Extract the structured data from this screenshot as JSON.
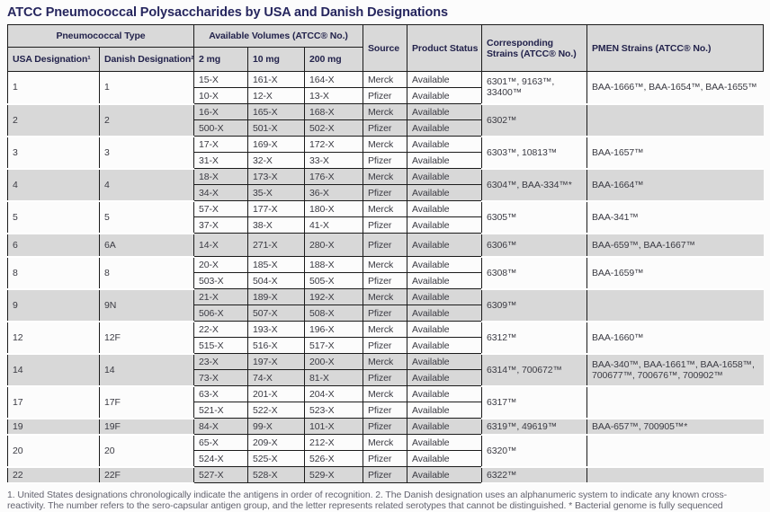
{
  "title": "ATCC Pneumococcal Polysaccharides by USA and Danish Designations",
  "header": {
    "group_pneumococcal": "Pneumococcal Type",
    "group_volumes": "Available Volumes (ATCC® No.)",
    "col_usa": "USA Designation¹",
    "col_danish": "Danish Designation²",
    "col_2mg": "2 mg",
    "col_10mg": "10 mg",
    "col_200mg": "200 mg",
    "col_source": "Source",
    "col_status": "Product Status",
    "col_strains": "Corresponding Strains (ATCC® No.)",
    "col_pmen": "PMEN Strains (ATCC® No.)"
  },
  "groups": [
    {
      "usa": "1",
      "danish": "1",
      "strains": "6301™, 9163™, 33400™",
      "pmen": "BAA-1666™, BAA-1654™, BAA-1655™",
      "rows": [
        {
          "v2": "15-X",
          "v10": "161-X",
          "v200": "164-X",
          "source": "Merck",
          "status": "Available"
        },
        {
          "v2": "10-X",
          "v10": "12-X",
          "v200": "13-X",
          "source": "Pfizer",
          "status": "Available"
        }
      ]
    },
    {
      "usa": "2",
      "danish": "2",
      "strains": "6302™",
      "pmen": "",
      "rows": [
        {
          "v2": "16-X",
          "v10": "165-X",
          "v200": "168-X",
          "source": "Merck",
          "status": "Available"
        },
        {
          "v2": "500-X",
          "v10": "501-X",
          "v200": "502-X",
          "source": "Pfizer",
          "status": "Available"
        }
      ]
    },
    {
      "usa": "3",
      "danish": "3",
      "strains": "6303™, 10813™",
      "pmen": "BAA-1657™",
      "rows": [
        {
          "v2": "17-X",
          "v10": "169-X",
          "v200": "172-X",
          "source": "Merck",
          "status": "Available"
        },
        {
          "v2": "31-X",
          "v10": "32-X",
          "v200": "33-X",
          "source": "Pfizer",
          "status": "Available"
        }
      ]
    },
    {
      "usa": "4",
      "danish": "4",
      "strains": "6304™, BAA-334™*",
      "pmen": "BAA-1664™",
      "rows": [
        {
          "v2": "18-X",
          "v10": "173-X",
          "v200": "176-X",
          "source": "Merck",
          "status": "Available"
        },
        {
          "v2": "34-X",
          "v10": "35-X",
          "v200": "36-X",
          "source": "Pfizer",
          "status": "Available"
        }
      ]
    },
    {
      "usa": "5",
      "danish": "5",
      "strains": "6305™",
      "pmen": "BAA-341™",
      "rows": [
        {
          "v2": "57-X",
          "v10": "177-X",
          "v200": "180-X",
          "source": "Merck",
          "status": "Available"
        },
        {
          "v2": "37-X",
          "v10": "38-X",
          "v200": "41-X",
          "source": "Pfizer",
          "status": "Available"
        }
      ]
    },
    {
      "usa": "6",
      "danish": "6A",
      "strains": "6306™",
      "pmen": "BAA-659™, BAA-1667™",
      "tall": true,
      "rows": [
        {
          "v2": "14-X",
          "v10": "271-X",
          "v200": "280-X",
          "source": "Pfizer",
          "status": "Available"
        }
      ]
    },
    {
      "usa": "8",
      "danish": "8",
      "strains": "6308™",
      "pmen": "BAA-1659™",
      "rows": [
        {
          "v2": "20-X",
          "v10": "185-X",
          "v200": "188-X",
          "source": "Merck",
          "status": "Available"
        },
        {
          "v2": "503-X",
          "v10": "504-X",
          "v200": "505-X",
          "source": "Pfizer",
          "status": "Available"
        }
      ]
    },
    {
      "usa": "9",
      "danish": "9N",
      "strains": "6309™",
      "pmen": "",
      "rows": [
        {
          "v2": "21-X",
          "v10": "189-X",
          "v200": "192-X",
          "source": "Merck",
          "status": "Available"
        },
        {
          "v2": "506-X",
          "v10": "507-X",
          "v200": "508-X",
          "source": "Pfizer",
          "status": "Available"
        }
      ]
    },
    {
      "usa": "12",
      "danish": "12F",
      "strains": "6312™",
      "pmen": "BAA-1660™",
      "rows": [
        {
          "v2": "22-X",
          "v10": "193-X",
          "v200": "196-X",
          "source": "Merck",
          "status": "Available"
        },
        {
          "v2": "515-X",
          "v10": "516-X",
          "v200": "517-X",
          "source": "Pfizer",
          "status": "Available"
        }
      ]
    },
    {
      "usa": "14",
      "danish": "14",
      "strains": "6314™, 700672™",
      "pmen": "BAA-340™, BAA-1661™, BAA-1658™, 700677™, 700676™, 700902™",
      "rows": [
        {
          "v2": "23-X",
          "v10": "197-X",
          "v200": "200-X",
          "source": "Merck",
          "status": "Available"
        },
        {
          "v2": "73-X",
          "v10": "74-X",
          "v200": "81-X",
          "source": "Pfizer",
          "status": "Available"
        }
      ]
    },
    {
      "usa": "17",
      "danish": "17F",
      "strains": "6317™",
      "pmen": "",
      "rows": [
        {
          "v2": "63-X",
          "v10": "201-X",
          "v200": "204-X",
          "source": "Merck",
          "status": "Available"
        },
        {
          "v2": "521-X",
          "v10": "522-X",
          "v200": "523-X",
          "source": "Pfizer",
          "status": "Available"
        }
      ]
    },
    {
      "usa": "19",
      "danish": "19F",
      "strains": "6319™, 49619™",
      "pmen": "BAA-657™, 700905™*",
      "rows": [
        {
          "v2": "84-X",
          "v10": "99-X",
          "v200": "101-X",
          "source": "Pfizer",
          "status": "Available"
        }
      ]
    },
    {
      "usa": "20",
      "danish": "20",
      "strains": "6320™",
      "pmen": "",
      "rows": [
        {
          "v2": "65-X",
          "v10": "209-X",
          "v200": "212-X",
          "source": "Merck",
          "status": "Available"
        },
        {
          "v2": "524-X",
          "v10": "525-X",
          "v200": "526-X",
          "source": "Pfizer",
          "status": "Available"
        }
      ]
    },
    {
      "usa": "22",
      "danish": "22F",
      "strains": "6322™",
      "pmen": "",
      "rows": [
        {
          "v2": "527-X",
          "v10": "528-X",
          "v200": "529-X",
          "source": "Pfizer",
          "status": "Available"
        }
      ]
    }
  ],
  "footnote": "1. United States designations chronologically indicate the antigens in order of recognition. 2. The Danish designation uses an alphanumeric system to indicate any known cross-reactivity. The number refers to the sero-capsular antigen group, and the letter represents related serotypes that  cannot be distinguished. * Bacterial genome is fully sequenced",
  "colors": {
    "title_navy": "#26265e",
    "header_bg": "#d9d9d9",
    "stripe_bg": "#d8d8d8",
    "border": "#1b1b1b",
    "body_text": "#3a3a42",
    "footnote_text": "#63636f"
  }
}
